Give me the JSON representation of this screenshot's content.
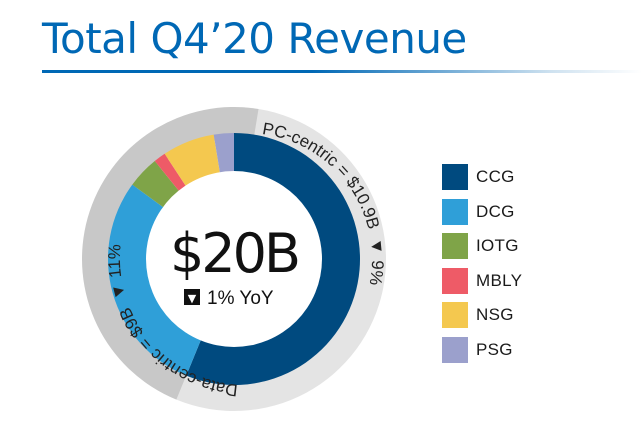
{
  "title": "Total Q4’20 Revenue",
  "center": {
    "value": "$20B",
    "yoy_change": "▼",
    "yoy_text": "1% YoY"
  },
  "groups": {
    "pc_centric": {
      "label": "PC-centric = $10.9B",
      "change_icon": "▼",
      "change_text": "9%"
    },
    "data_centric": {
      "label": "Data-centric = $9B",
      "change_icon": "▼",
      "change_text": "11%"
    }
  },
  "colors": {
    "CCG": "#004a7f",
    "DCG": "#2f9fd8",
    "IOTG": "#7fa448",
    "MBLY": "#ee5b67",
    "NSG": "#f4c84f",
    "PSG": "#9ba0cc",
    "outer_pc": "#e4e4e4",
    "outer_dc": "#c8c8c8",
    "title": "#0068b5"
  },
  "chart_data": {
    "type": "pie",
    "title": "Total Q4’20 Revenue",
    "categories": [
      "CCG",
      "DCG",
      "IOTG",
      "MBLY",
      "NSG",
      "PSG"
    ],
    "values": [
      10.9,
      5.6,
      0.8,
      0.3,
      1.3,
      0.5
    ],
    "unit": "$B",
    "groups": [
      {
        "name": "PC-centric",
        "members": [
          "CCG"
        ],
        "value": 10.9,
        "yoy": "-9%"
      },
      {
        "name": "Data-centric",
        "members": [
          "DCG",
          "IOTG",
          "MBLY",
          "NSG",
          "PSG"
        ],
        "value": 9,
        "yoy": "-11%"
      }
    ],
    "total": 20,
    "total_yoy": "-1%",
    "legend_position": "right"
  }
}
